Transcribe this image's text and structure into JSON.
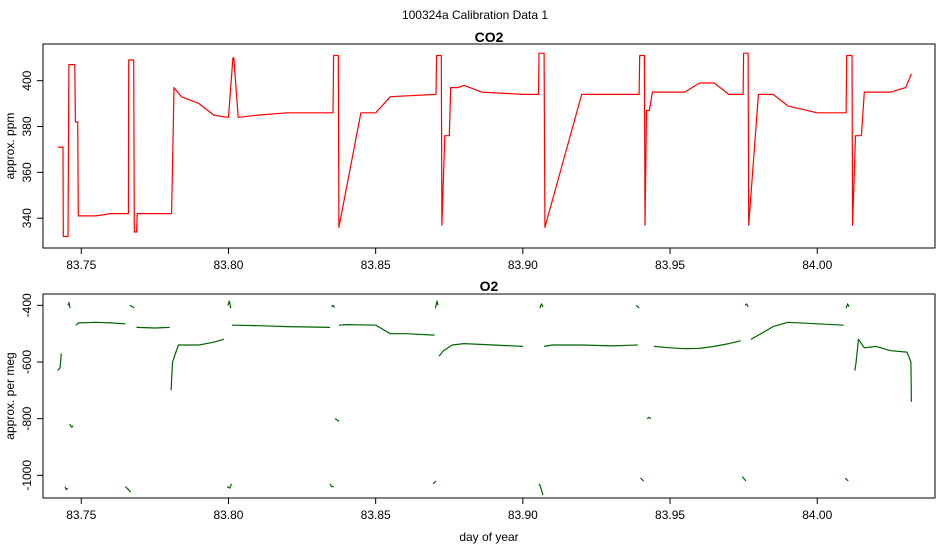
{
  "figure": {
    "title": "100324a   Calibration Data 1"
  },
  "chart_data": [
    {
      "type": "line",
      "title": "CO2",
      "xlabel": "",
      "ylabel": "approx. ppm",
      "xlim": [
        83.737,
        84.04
      ],
      "ylim": [
        327,
        416
      ],
      "x_ticks": [
        "83.75",
        "83.80",
        "83.85",
        "83.90",
        "83.95",
        "84.00"
      ],
      "y_ticks": [
        "340",
        "360",
        "380",
        "400"
      ],
      "color": "#ff0000",
      "series": [
        {
          "x": [
            83.742,
            83.7438,
            83.7439,
            83.7455,
            83.7458,
            83.7478,
            83.748,
            83.7488,
            83.749,
            83.755,
            83.76,
            83.766,
            83.7661,
            83.7678,
            83.768,
            83.7688,
            83.769,
            83.775,
            83.78,
            83.7807,
            83.7815,
            83.784,
            83.79,
            83.795,
            83.7995,
            83.8,
            83.8015,
            83.8018,
            83.8033,
            83.8035,
            83.81,
            83.82,
            83.8355,
            83.8357,
            83.8373,
            83.8375,
            83.845,
            83.85,
            83.855,
            83.8705,
            83.8707,
            83.8723,
            83.8725,
            83.8735,
            83.875,
            83.8755,
            83.878,
            83.88,
            83.886,
            83.9,
            83.9053,
            83.9055,
            83.9072,
            83.9075,
            83.92,
            83.9395,
            83.9397,
            83.9413,
            83.9415,
            83.942,
            83.943,
            83.944,
            83.955,
            83.96,
            83.965,
            83.97,
            83.9748,
            83.975,
            83.9765,
            83.9767,
            83.98,
            83.985,
            83.99,
            84.0,
            84.009,
            84.0098,
            84.01,
            84.0118,
            84.012,
            84.013,
            84.015,
            84.016,
            84.025,
            84.03,
            84.032
          ],
          "y": [
            371,
            371,
            332,
            332,
            407,
            407,
            382,
            382,
            341,
            341,
            342,
            342,
            409,
            409,
            334,
            334,
            342,
            342,
            342,
            342,
            397,
            393,
            390,
            385,
            384,
            384,
            410,
            410,
            384,
            384,
            385,
            386,
            386,
            411,
            411,
            336,
            386,
            386,
            393,
            394,
            411,
            411,
            337,
            376,
            376,
            397,
            397,
            398,
            395,
            394,
            394,
            412,
            412,
            336,
            394,
            394,
            411,
            411,
            337,
            387,
            387,
            395,
            395,
            399,
            399,
            394,
            394,
            412,
            412,
            337,
            394,
            394,
            389,
            386,
            386,
            386,
            411,
            411,
            337,
            376,
            376,
            395,
            395,
            397,
            403
          ]
        }
      ]
    },
    {
      "type": "line",
      "title": "O2",
      "xlabel": "day of year",
      "ylabel": "approx. per meg",
      "xlim": [
        83.737,
        84.04
      ],
      "ylim": [
        -1080,
        -360
      ],
      "x_ticks": [
        "83.75",
        "83.80",
        "83.85",
        "83.90",
        "83.95",
        "84.00"
      ],
      "y_ticks": [
        "-400",
        "-600",
        "-800",
        "-1000"
      ],
      "color": "#006400",
      "segments": [
        {
          "x": [
            83.742,
            83.7428,
            83.7432
          ],
          "y": [
            -630,
            -620,
            -570
          ]
        },
        {
          "x": [
            83.7445,
            83.7448,
            83.7455
          ],
          "y": [
            -1040,
            -1050,
            -1045
          ]
        },
        {
          "x": [
            83.7455,
            83.7458,
            83.7462
          ],
          "y": [
            -400,
            -390,
            -410
          ]
        },
        {
          "x": [
            83.746,
            83.7468,
            83.7472
          ],
          "y": [
            -820,
            -830,
            -825
          ]
        },
        {
          "x": [
            83.7482,
            83.749,
            83.755,
            83.76,
            83.765
          ],
          "y": [
            -470,
            -462,
            -460,
            -462,
            -465
          ]
        },
        {
          "x": [
            83.765,
            83.766,
            83.7668
          ],
          "y": [
            -1040,
            -1050,
            -1060
          ]
        },
        {
          "x": [
            83.7665,
            83.7675,
            83.768
          ],
          "y": [
            -400,
            -405,
            -410
          ]
        },
        {
          "x": [
            83.7688,
            83.769,
            83.775,
            83.78
          ],
          "y": [
            -475,
            -478,
            -480,
            -478
          ]
        },
        {
          "x": [
            83.7805,
            83.781,
            83.783,
            83.79,
            83.795,
            83.7985
          ],
          "y": [
            -700,
            -600,
            -540,
            -540,
            -530,
            -520
          ]
        },
        {
          "x": [
            83.7995,
            83.8005,
            83.801
          ],
          "y": [
            -1040,
            -1045,
            -1030
          ]
        },
        {
          "x": [
            83.7998,
            83.8003,
            83.8008
          ],
          "y": [
            -400,
            -385,
            -410
          ]
        },
        {
          "x": [
            83.8012,
            83.802,
            83.81,
            83.82,
            83.8345
          ],
          "y": [
            -470,
            -470,
            -472,
            -475,
            -478
          ]
        },
        {
          "x": [
            83.8345,
            83.835,
            83.8358
          ],
          "y": [
            -1030,
            -1040,
            -1040
          ]
        },
        {
          "x": [
            83.835,
            83.8355,
            83.836
          ],
          "y": [
            -405,
            -400,
            -408
          ]
        },
        {
          "x": [
            83.8362,
            83.837,
            83.8375
          ],
          "y": [
            -800,
            -805,
            -810
          ]
        },
        {
          "x": [
            83.8375,
            83.84,
            83.85,
            83.855,
            83.86,
            83.87
          ],
          "y": [
            -470,
            -468,
            -470,
            -500,
            -500,
            -505
          ]
        },
        {
          "x": [
            83.8695,
            83.87,
            83.8705
          ],
          "y": [
            -1030,
            -1025,
            -1020
          ]
        },
        {
          "x": [
            83.8703,
            83.8708,
            83.8712
          ],
          "y": [
            -410,
            -385,
            -400
          ]
        },
        {
          "x": [
            83.8715,
            83.873,
            83.876,
            83.88,
            83.89,
            83.9
          ],
          "y": [
            -580,
            -560,
            -540,
            -535,
            -540,
            -545
          ]
        },
        {
          "x": [
            83.9055,
            83.906,
            83.9068
          ],
          "y": [
            -1030,
            -1040,
            -1070
          ]
        },
        {
          "x": [
            83.9058,
            83.9063,
            83.9068
          ],
          "y": [
            -410,
            -395,
            -405
          ]
        },
        {
          "x": [
            83.9072,
            83.91,
            83.92,
            83.93,
            83.939
          ],
          "y": [
            -545,
            -540,
            -540,
            -543,
            -540
          ]
        },
        {
          "x": [
            83.9385,
            83.939,
            83.9395
          ],
          "y": [
            -400,
            -405,
            -410
          ]
        },
        {
          "x": [
            83.94,
            83.9405,
            83.941
          ],
          "y": [
            -1010,
            -1015,
            -1020
          ]
        },
        {
          "x": [
            83.9422,
            83.9428,
            83.9435
          ],
          "y": [
            -800,
            -795,
            -800
          ]
        },
        {
          "x": [
            83.9445,
            83.95,
            83.955,
            83.96,
            83.965,
            83.97,
            83.974
          ],
          "y": [
            -545,
            -550,
            -553,
            -552,
            -545,
            -535,
            -525
          ]
        },
        {
          "x": [
            83.9745,
            83.975,
            83.9758
          ],
          "y": [
            -1005,
            -1010,
            -1020
          ]
        },
        {
          "x": [
            83.9755,
            83.976,
            83.9765
          ],
          "y": [
            -400,
            -395,
            -405
          ]
        },
        {
          "x": [
            83.9775,
            83.98,
            83.985,
            83.99,
            84.0,
            84.009
          ],
          "y": [
            -520,
            -505,
            -475,
            -460,
            -465,
            -470
          ]
        },
        {
          "x": [
            84.0095,
            84.01,
            84.0105
          ],
          "y": [
            -1010,
            -1015,
            -1020
          ]
        },
        {
          "x": [
            84.0098,
            84.0103,
            84.0108
          ],
          "y": [
            -410,
            -395,
            -405
          ]
        },
        {
          "x": [
            84.0128,
            84.0132,
            84.014,
            84.016,
            84.02,
            84.025,
            84.0305,
            84.0318,
            84.032
          ],
          "y": [
            -630,
            -600,
            -520,
            -550,
            -545,
            -560,
            -565,
            -600,
            -740
          ]
        }
      ]
    }
  ]
}
